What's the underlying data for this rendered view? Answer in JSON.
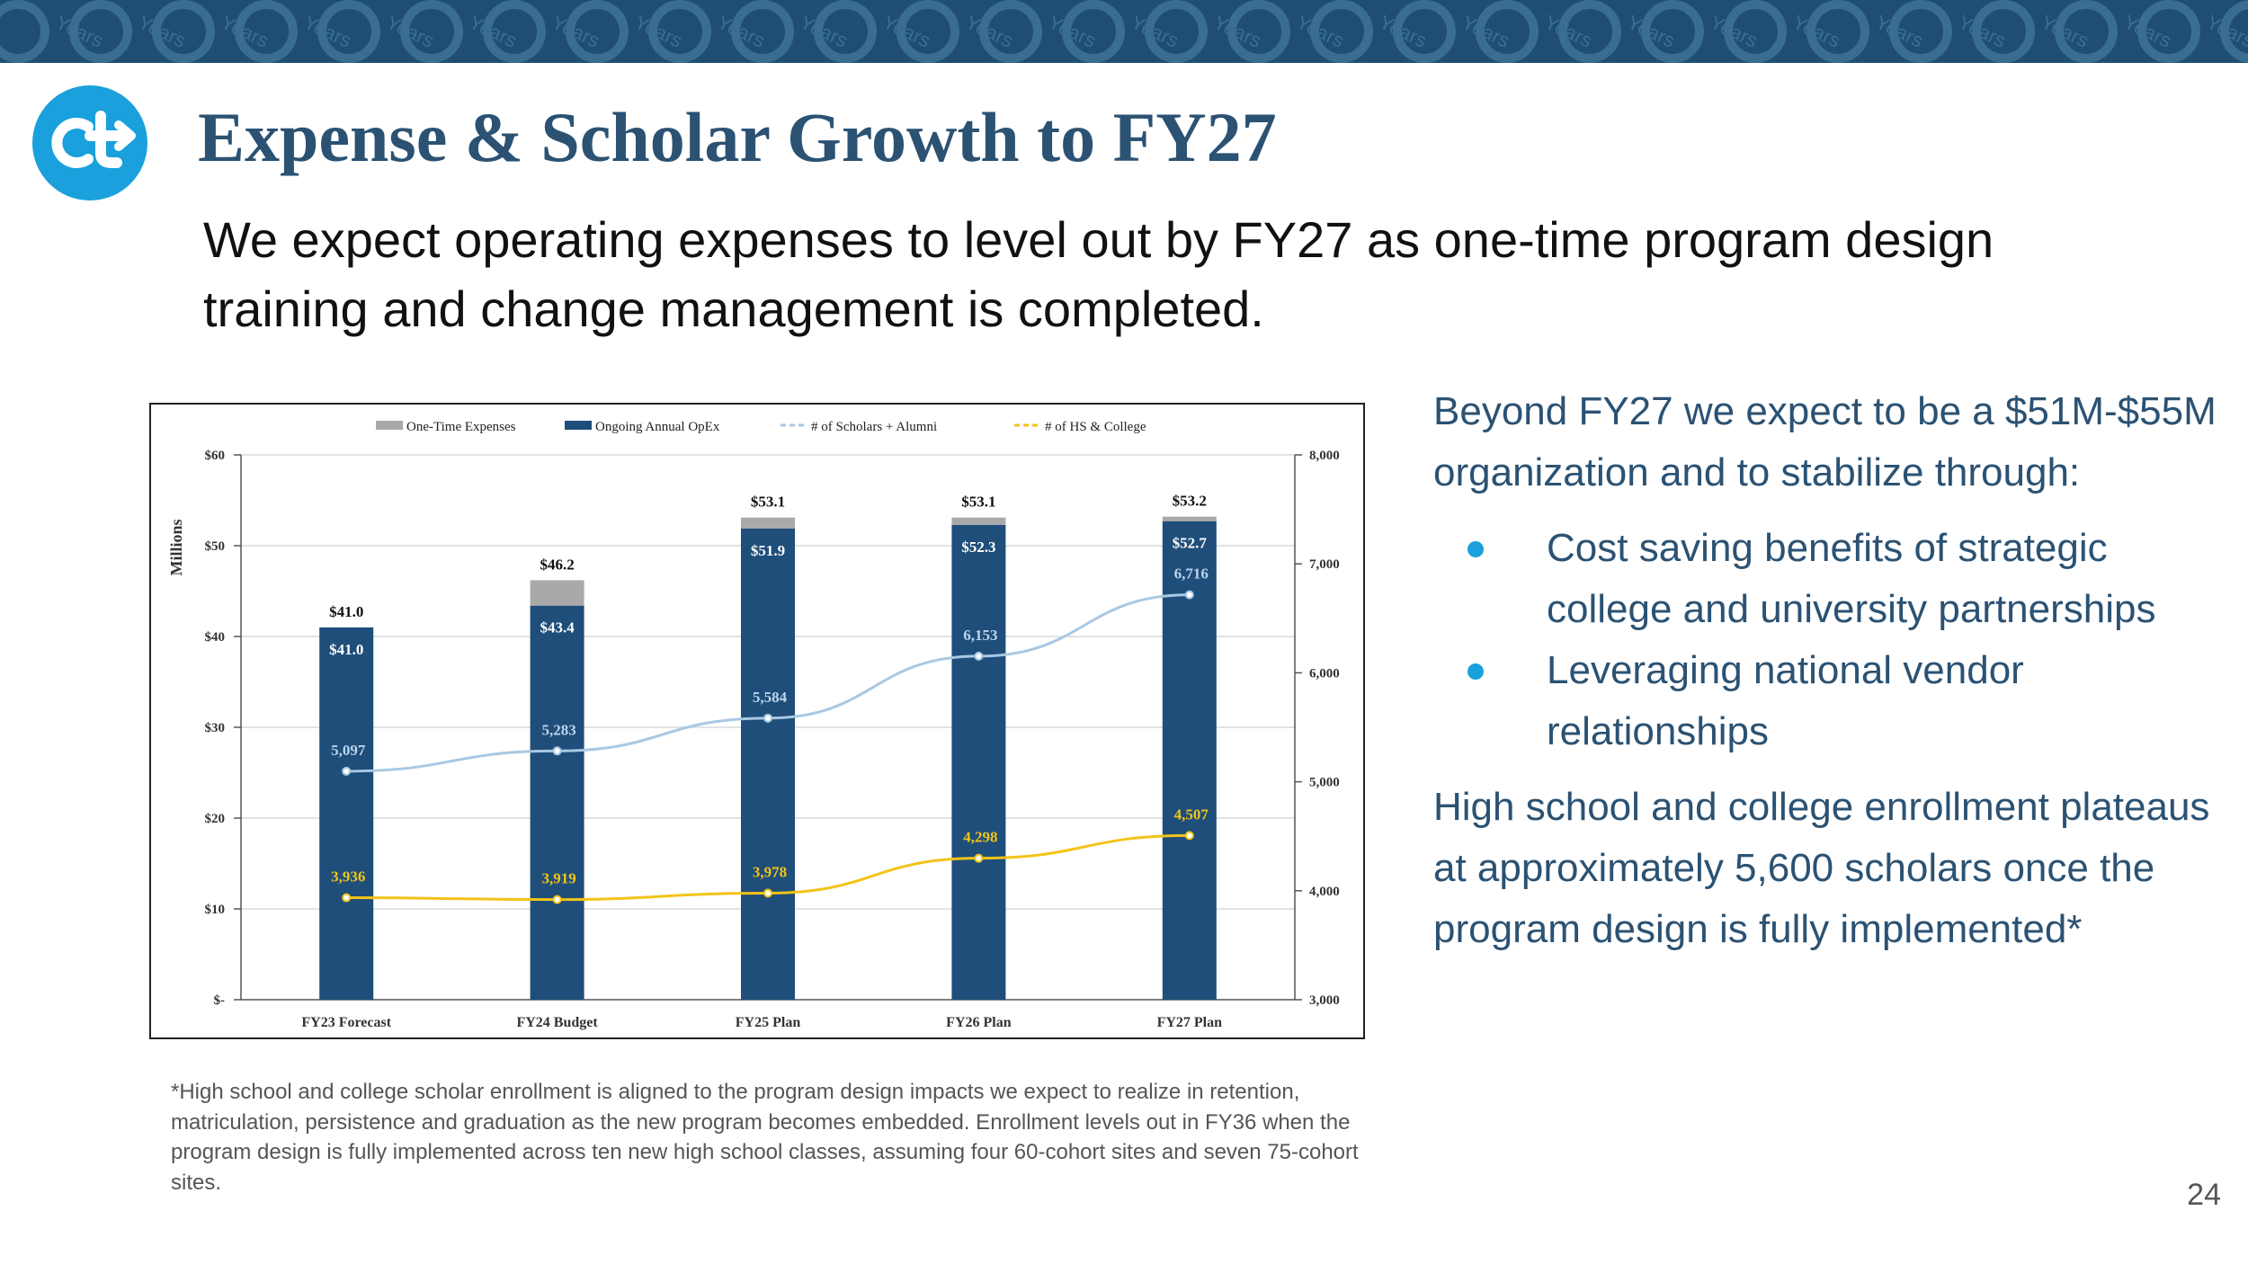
{
  "banner": {
    "decor_text": "Years",
    "colors": {
      "background": "#1f4e72",
      "pattern": "#3a6d92"
    }
  },
  "logo": {
    "icon": "ct-arrow-logo",
    "color": "#1aa0dc"
  },
  "title": "Expense & Scholar Growth to FY27",
  "subtitle": "We expect operating expenses to level out by FY27 as one-time program design training and change management is completed.",
  "chart_data": {
    "type": "bar",
    "categories": [
      "FY23 Forecast",
      "FY24 Budget",
      "FY25 Plan",
      "FY26 Plan",
      "FY27 Plan"
    ],
    "series": [
      {
        "name": "One-Time Expenses",
        "kind": "bar",
        "axis": "left",
        "color": "#a9a9a9",
        "values": [
          0.0,
          2.8,
          1.2,
          0.8,
          0.5
        ]
      },
      {
        "name": "Ongoing Annual OpEx",
        "kind": "bar",
        "axis": "left",
        "color": "#1f4e7a",
        "values": [
          41.0,
          43.4,
          51.9,
          52.3,
          52.7
        ],
        "labels": [
          "$41.0",
          "$43.4",
          "$51.9",
          "$52.3",
          "$52.7"
        ]
      },
      {
        "name": "# of Scholars + Alumni",
        "kind": "line",
        "axis": "right",
        "color": "#a9c8e2",
        "values": [
          5097,
          5283,
          5584,
          6153,
          6716
        ],
        "labels": [
          "5,097",
          "5,283",
          "5,584",
          "6,153",
          "6,716"
        ]
      },
      {
        "name": "# of HS & College",
        "kind": "line",
        "axis": "right",
        "color": "#f2c418",
        "values": [
          3936,
          3919,
          3978,
          4298,
          4507
        ],
        "labels": [
          "3,936",
          "3,919",
          "3,978",
          "4,298",
          "4,507"
        ]
      }
    ],
    "totals": [
      41.0,
      46.2,
      53.1,
      53.1,
      53.2
    ],
    "total_labels": [
      "$41.0",
      "$46.2",
      "$53.1",
      "$53.1",
      "$53.2"
    ],
    "ylabel": "Millions",
    "ylim": [
      0,
      60
    ],
    "y_ticks": [
      0,
      10,
      20,
      30,
      40,
      50,
      60
    ],
    "y_tick_labels": [
      "$-",
      "$10",
      "$20",
      "$30",
      "$40",
      "$50",
      "$60"
    ],
    "y2lim": [
      3000,
      8000
    ],
    "y2_ticks": [
      3000,
      4000,
      5000,
      6000,
      7000,
      8000
    ],
    "y2_tick_labels": [
      "3,000",
      "4,000",
      "5,000",
      "6,000",
      "7,000",
      "8,000"
    ],
    "grid": true,
    "legend": "top"
  },
  "footnote": "*High school and college scholar enrollment is aligned to the program design impacts we expect to realize in retention, matriculation, persistence and graduation as the new program becomes embedded. Enrollment levels out in FY36 when the program design is fully implemented across ten new high school classes, assuming four 60-cohort sites and seven 75-cohort sites.",
  "side": {
    "intro": "Beyond FY27 we expect to be a $51M-$55M organization and to stabilize through:",
    "bullets": [
      {
        "text": "Cost saving benefits of strategic college and university partnerships"
      },
      {
        "text": "Leveraging national vendor relationships"
      }
    ],
    "closing": "High school and college enrollment plateaus at approximately 5,600 scholars once the program design is fully implemented*"
  },
  "page_number": "24",
  "colors": {
    "title": "#2b5273",
    "accent": "#1aa0dc",
    "side_text": "#2b5273"
  }
}
